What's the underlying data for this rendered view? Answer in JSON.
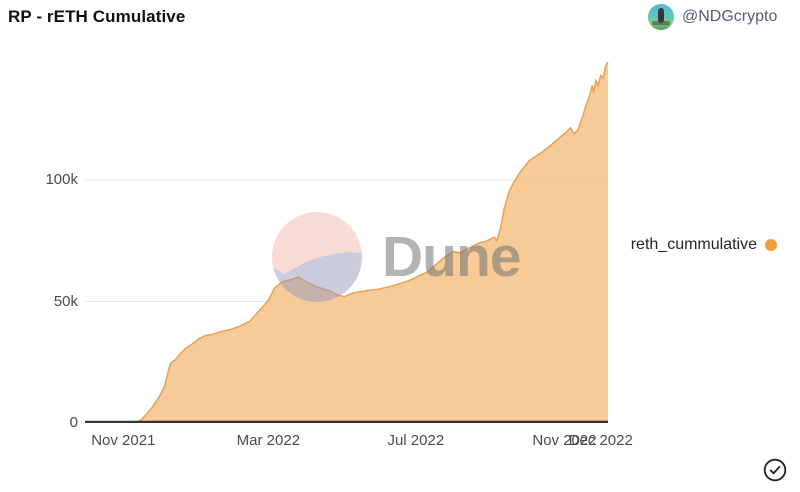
{
  "header": {
    "title": "RP - rETH Cumulative",
    "author_handle": "@NDGcrypto"
  },
  "legend": {
    "label": "reth_cummulative",
    "dot_color": "#ef9f3e"
  },
  "watermark": {
    "text": "Dune"
  },
  "chart_data": {
    "type": "area",
    "title": "RP - rETH Cumulative",
    "xlabel": "",
    "ylabel": "",
    "ylim": [
      0,
      154000
    ],
    "grid": true,
    "legend_position": "right",
    "colors": {
      "area_fill": "#f5c891",
      "line": "#e7a254",
      "axis": "#1d1d1d",
      "gridline": "#e8e8e8",
      "legend_dot": "#ef9f3e"
    },
    "y_ticks": [
      {
        "label": "0",
        "value": 0
      },
      {
        "label": "50k",
        "value": 50000
      },
      {
        "label": "100k",
        "value": 100000
      }
    ],
    "x_ticks": [
      {
        "label": "Nov 2021",
        "date": "2021-11-01"
      },
      {
        "label": "Mar 2022",
        "date": "2022-03-01"
      },
      {
        "label": "Jul 2022",
        "date": "2022-07-01"
      },
      {
        "label": "Nov 2022",
        "date": "2022-11-01"
      },
      {
        "label": "Dec 2022",
        "date": "2022-12-01"
      }
    ],
    "series": [
      {
        "name": "reth_cummulative",
        "points": [
          [
            "2021-11-09",
            0
          ],
          [
            "2021-11-15",
            1000
          ],
          [
            "2021-11-20",
            3500
          ],
          [
            "2021-11-25",
            6500
          ],
          [
            "2021-12-01",
            11000
          ],
          [
            "2021-12-05",
            15000
          ],
          [
            "2021-12-08",
            21000
          ],
          [
            "2021-12-10",
            24500
          ],
          [
            "2021-12-14",
            26000
          ],
          [
            "2021-12-18",
            28500
          ],
          [
            "2021-12-22",
            30500
          ],
          [
            "2021-12-28",
            32500
          ],
          [
            "2022-01-02",
            34500
          ],
          [
            "2022-01-08",
            36000
          ],
          [
            "2022-01-14",
            36500
          ],
          [
            "2022-01-20",
            37500
          ],
          [
            "2022-01-29",
            38500
          ],
          [
            "2022-02-06",
            40000
          ],
          [
            "2022-02-14",
            42000
          ],
          [
            "2022-02-22",
            46500
          ],
          [
            "2022-03-01",
            50500
          ],
          [
            "2022-03-06",
            55500
          ],
          [
            "2022-03-12",
            58000
          ],
          [
            "2022-03-20",
            59000
          ],
          [
            "2022-03-26",
            60000
          ],
          [
            "2022-04-02",
            58000
          ],
          [
            "2022-04-10",
            56000
          ],
          [
            "2022-04-20",
            54500
          ],
          [
            "2022-04-28",
            52500
          ],
          [
            "2022-05-03",
            52000
          ],
          [
            "2022-05-10",
            53500
          ],
          [
            "2022-05-21",
            54500
          ],
          [
            "2022-05-31",
            55000
          ],
          [
            "2022-06-12",
            56500
          ],
          [
            "2022-06-25",
            58500
          ],
          [
            "2022-07-03",
            60500
          ],
          [
            "2022-07-10",
            62000
          ],
          [
            "2022-07-16",
            64500
          ],
          [
            "2022-07-24",
            68000
          ],
          [
            "2022-08-01",
            70500
          ],
          [
            "2022-08-07",
            70000
          ],
          [
            "2022-08-14",
            72000
          ],
          [
            "2022-08-22",
            74000
          ],
          [
            "2022-08-29",
            75000
          ],
          [
            "2022-09-04",
            76500
          ],
          [
            "2022-09-06",
            75000
          ],
          [
            "2022-09-09",
            80000
          ],
          [
            "2022-09-12",
            88000
          ],
          [
            "2022-09-16",
            95000
          ],
          [
            "2022-09-20",
            99000
          ],
          [
            "2022-09-25",
            103000
          ],
          [
            "2022-10-03",
            108000
          ],
          [
            "2022-10-12",
            111000
          ],
          [
            "2022-10-20",
            114000
          ],
          [
            "2022-10-27",
            117000
          ],
          [
            "2022-11-02",
            119500
          ],
          [
            "2022-11-06",
            121500
          ],
          [
            "2022-11-09",
            119000
          ],
          [
            "2022-11-12",
            120500
          ],
          [
            "2022-11-16",
            126000
          ],
          [
            "2022-11-19",
            131000
          ],
          [
            "2022-11-22",
            135000
          ],
          [
            "2022-11-24",
            139000
          ],
          [
            "2022-11-25",
            136000
          ],
          [
            "2022-11-27",
            141000
          ],
          [
            "2022-11-29",
            139000
          ],
          [
            "2022-12-01",
            143000
          ],
          [
            "2022-12-03",
            142000
          ],
          [
            "2022-12-05",
            147000
          ],
          [
            "2022-12-07",
            148500
          ]
        ]
      }
    ]
  }
}
